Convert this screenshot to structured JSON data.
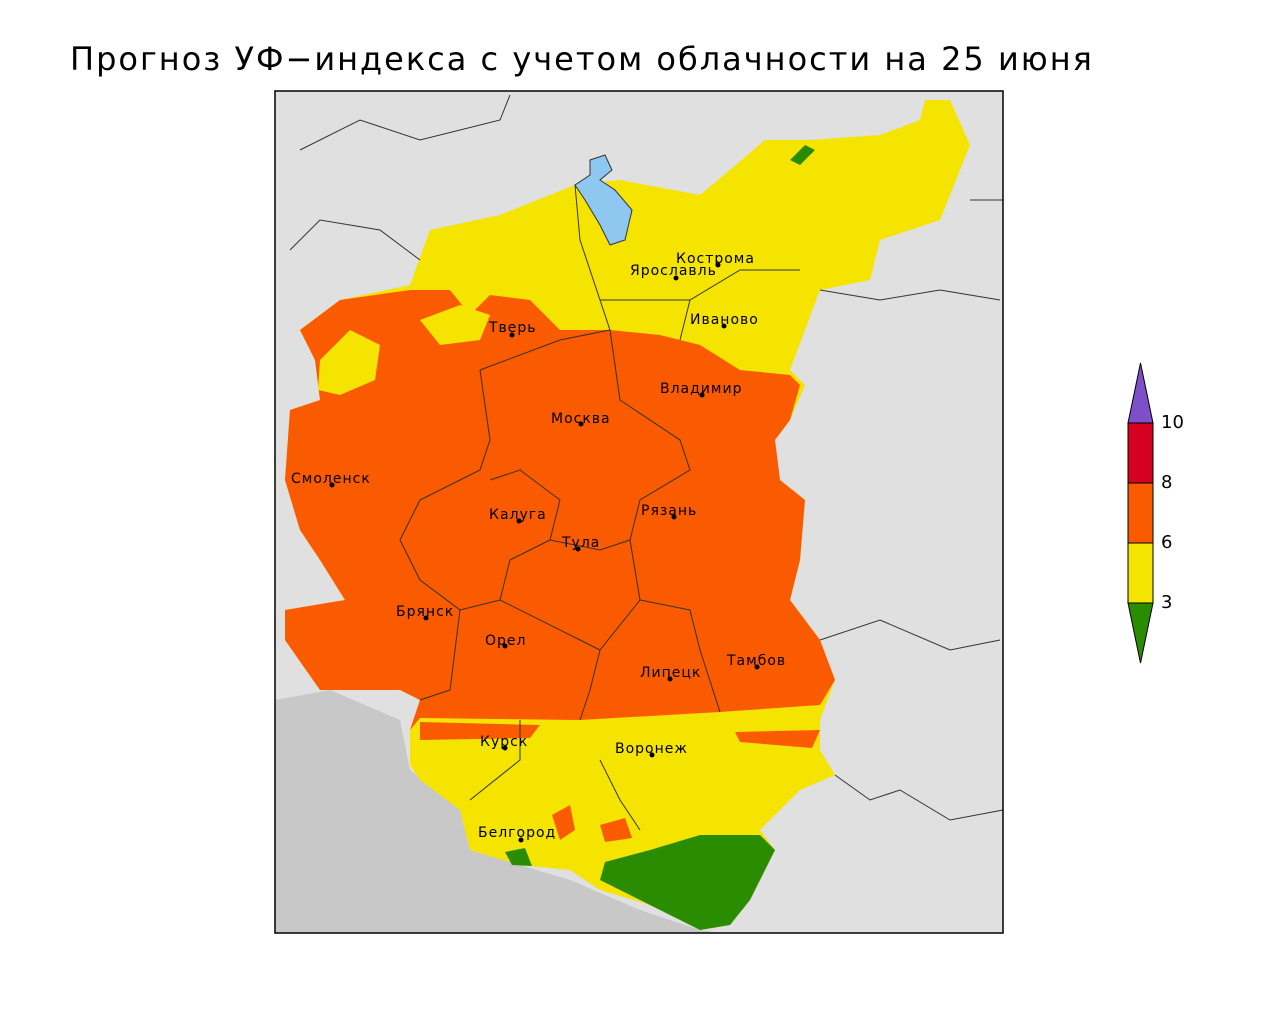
{
  "title": "Прогноз УФ−индекса с учетом облачности на 25 июня",
  "cities": [
    "Кострома",
    "Ярославль",
    "Иваново",
    "Тверь",
    "Владимир",
    "Москва",
    "Смоленск",
    "Калуга",
    "Рязань",
    "Тула",
    "Брянск",
    "Орел",
    "Липецк",
    "Тамбов",
    "Курск",
    "Воронеж",
    "Белгород"
  ],
  "legend": {
    "ticks": [
      3,
      6,
      8,
      10
    ],
    "colors": [
      "#2a8c00",
      "#f5e400",
      "#fa5a00",
      "#d60020",
      "#7d4fc8"
    ]
  }
}
